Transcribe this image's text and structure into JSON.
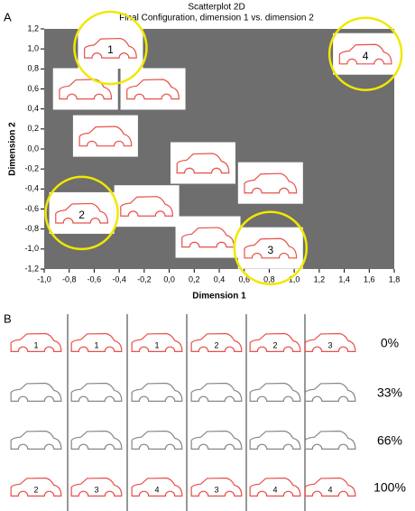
{
  "panel_a_label": "A",
  "chart_data": {
    "type": "scatter",
    "title": "Scatterplot 2D",
    "subtitle": "Final Configuration, dimension 1  vs. dimension 2",
    "xlabel": "Dimension 1",
    "ylabel": "Dimension 2",
    "series": [
      {
        "x": [
          -0.47,
          -0.67,
          -0.13,
          -0.51,
          0.27,
          0.81,
          -0.7,
          -0.18,
          0.31,
          0.81,
          1.57
        ],
        "y": [
          1.01,
          0.6,
          0.6,
          0.13,
          -0.14,
          -0.34,
          -0.64,
          -0.57,
          -0.88,
          -0.99,
          0.95
        ],
        "point_labels": [
          "1",
          null,
          null,
          null,
          null,
          null,
          "2",
          null,
          null,
          "3",
          "4"
        ],
        "color": "#e8504a"
      }
    ],
    "xlim": [
      -1.0,
      1.8
    ],
    "ylim": [
      -1.2,
      1.2
    ],
    "xticks": [
      {
        "value": -1.0,
        "label": "-1,0"
      },
      {
        "value": -0.8,
        "label": "-0,8"
      },
      {
        "value": -0.6,
        "label": "-0,6"
      },
      {
        "value": -0.4,
        "label": "-0,4"
      },
      {
        "value": -0.2,
        "label": "-0,2"
      },
      {
        "value": 0.0,
        "label": "0,0"
      },
      {
        "value": 0.2,
        "label": "0,2"
      },
      {
        "value": 0.4,
        "label": "0,4"
      },
      {
        "value": 0.6,
        "label": "0,6"
      },
      {
        "value": 0.8,
        "label": "0,8"
      },
      {
        "value": 1.0,
        "label": "1,0"
      },
      {
        "value": 1.2,
        "label": "1,2"
      },
      {
        "value": 1.4,
        "label": "1,4"
      },
      {
        "value": 1.6,
        "label": "1,6"
      },
      {
        "value": 1.8,
        "label": "1,8"
      }
    ],
    "yticks": [
      {
        "value": 1.2,
        "label": "1,2"
      },
      {
        "value": 1.0,
        "label": "1,0"
      },
      {
        "value": 0.8,
        "label": "0,8"
      },
      {
        "value": 0.6,
        "label": "0,6"
      },
      {
        "value": 0.4,
        "label": "0,4"
      },
      {
        "value": 0.2,
        "label": "0,2"
      },
      {
        "value": 0.0,
        "label": "0,0"
      },
      {
        "value": -0.2,
        "label": "-0,2"
      },
      {
        "value": -0.4,
        "label": "-0,4"
      },
      {
        "value": -0.6,
        "label": "-0,6"
      },
      {
        "value": -0.8,
        "label": "-0,8"
      },
      {
        "value": -1.0,
        "label": "-1,0"
      },
      {
        "value": -1.2,
        "label": "-1,2"
      }
    ],
    "background": "#6e6e6e"
  },
  "panel_b": {
    "label": "B",
    "rows": [
      {
        "label": "0%",
        "car_numbers": [
          "1",
          "1",
          "1",
          "2",
          "2",
          "3"
        ]
      },
      {
        "label": "33%"
      },
      {
        "label": "66%"
      },
      {
        "label": "100%",
        "car_numbers": [
          "2",
          "3",
          "4",
          "3",
          "4",
          "4"
        ]
      }
    ]
  }
}
